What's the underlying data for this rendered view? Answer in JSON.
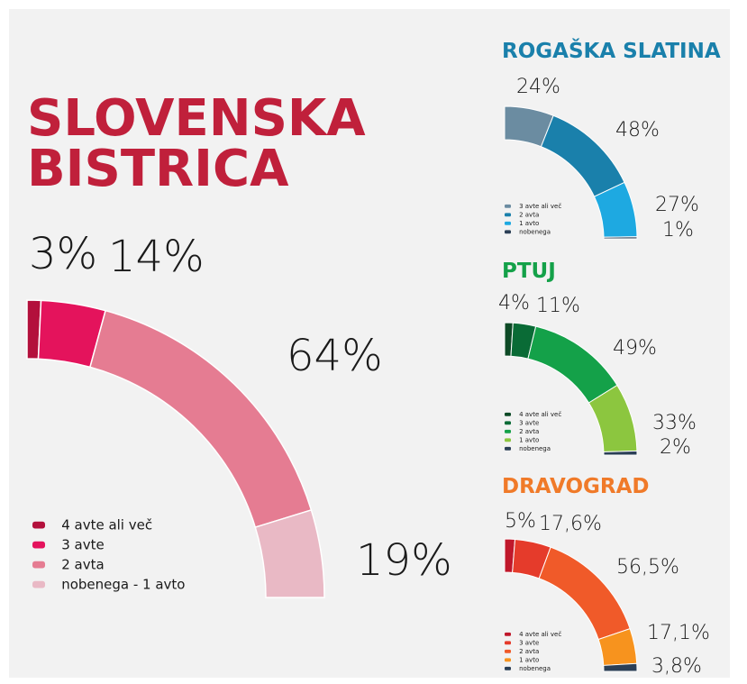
{
  "chart_data": [
    {
      "type": "donut",
      "title": "SLOVENSKA BISTRICA",
      "categories": [
        "4 avte ali več",
        "3 avte",
        "2 avta",
        "nobenega - 1 avto"
      ],
      "values": [
        3,
        14,
        64,
        19
      ],
      "value_labels": [
        "3%",
        "14%",
        "64%",
        "19%"
      ],
      "colors": [
        "#b3103c",
        "#e4135c",
        "#e57c92",
        "#e9b9c5"
      ]
    },
    {
      "type": "donut",
      "title": "ROGAŠKA SLATINA",
      "categories": [
        "3 avte ali več",
        "2 avta",
        "1 avto",
        "nobenega"
      ],
      "values": [
        24,
        48,
        27,
        1
      ],
      "value_labels": [
        "24%",
        "48%",
        "27%",
        "1%"
      ],
      "colors": [
        "#6b8ca1",
        "#1a80ab",
        "#1ea9e1",
        "#2b3f56"
      ]
    },
    {
      "type": "donut",
      "title": "PTUJ",
      "categories": [
        "4 avte ali več",
        "3 avte",
        "2 avta",
        "1 avto",
        "nobenega"
      ],
      "values": [
        4,
        11,
        49,
        33,
        2
      ],
      "value_labels": [
        "4%",
        "11%",
        "49%",
        "33%",
        "2%"
      ],
      "colors": [
        "#0d4a26",
        "#0a6b36",
        "#14a149",
        "#8cc63f",
        "#2b3f56"
      ]
    },
    {
      "type": "donut",
      "title": "DRAVOGRAD",
      "categories": [
        "4 avte ali več",
        "3 avte",
        "2 avta",
        "1 avto",
        "nobenega"
      ],
      "values": [
        5,
        17.6,
        56.5,
        17.1,
        3.8
      ],
      "value_labels": [
        "5%",
        "17,6%",
        "56,5%",
        "17,1%",
        "3,8%"
      ],
      "colors": [
        "#c0182b",
        "#e53b2b",
        "#f05a29",
        "#f7931e",
        "#2b3f56"
      ]
    }
  ]
}
